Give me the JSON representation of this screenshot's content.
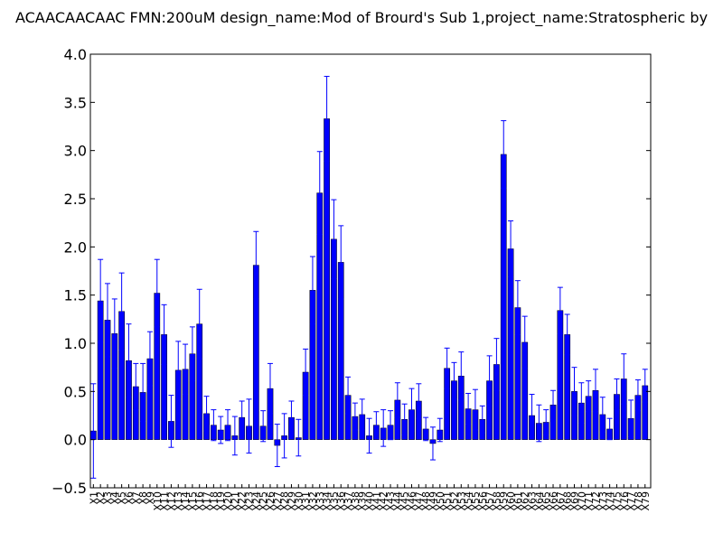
{
  "chart_data": {
    "type": "bar",
    "title": "ACAACAACAAC  FMN:200uM  design_name:Mod of Brourd's Sub 1,project_name:Stratospheric by",
    "xlabel": "",
    "ylabel": "",
    "ylim": [
      -0.5,
      4.0
    ],
    "yticks": [
      "−0.5",
      "0.0",
      "0.5",
      "1.0",
      "1.5",
      "2.0",
      "2.5",
      "3.0",
      "3.5",
      "4.0"
    ],
    "grid": false,
    "bar_color": "#0000ff",
    "categories": [
      "X1",
      "X2",
      "X3",
      "X4",
      "X5",
      "X6",
      "X7",
      "X8",
      "X9",
      "X10",
      "X11",
      "X12",
      "X13",
      "X14",
      "X15",
      "X16",
      "X17",
      "X18",
      "X19",
      "X20",
      "X21",
      "X22",
      "X23",
      "X24",
      "X25",
      "X26",
      "X27",
      "X28",
      "X29",
      "X30",
      "X31",
      "X32",
      "X33",
      "X34",
      "X35",
      "X36",
      "X37",
      "X38",
      "X39",
      "X40",
      "X41",
      "X42",
      "X43",
      "X44",
      "X45",
      "X46",
      "X47",
      "X48",
      "X49",
      "X50",
      "X51",
      "X52",
      "X53",
      "X54",
      "X55",
      "X56",
      "X57",
      "X58",
      "X59",
      "X60",
      "X61",
      "X62",
      "X63",
      "X64",
      "X65",
      "X66",
      "X67",
      "X68",
      "X69",
      "X70",
      "X71",
      "X72",
      "X73",
      "X74",
      "X75",
      "X76",
      "X77",
      "X78",
      "X79"
    ],
    "values": [
      0.09,
      1.44,
      1.24,
      1.1,
      1.33,
      0.82,
      0.55,
      0.49,
      0.84,
      1.52,
      1.09,
      0.19,
      0.72,
      0.73,
      0.89,
      1.2,
      0.27,
      0.15,
      0.1,
      0.15,
      0.04,
      0.23,
      0.14,
      1.81,
      0.14,
      0.53,
      -0.06,
      0.04,
      0.23,
      0.02,
      0.7,
      1.55,
      2.56,
      3.33,
      2.08,
      1.84,
      0.46,
      0.24,
      0.26,
      0.04,
      0.15,
      0.12,
      0.15,
      0.41,
      0.21,
      0.31,
      0.4,
      0.11,
      -0.04,
      0.1,
      0.74,
      0.61,
      0.66,
      0.32,
      0.31,
      0.21,
      0.61,
      0.78,
      2.96,
      1.98,
      1.37,
      1.01,
      0.25,
      0.17,
      0.18,
      0.36,
      1.34,
      1.09,
      0.5,
      0.38,
      0.45,
      0.51,
      0.26,
      0.11,
      0.47,
      0.63,
      0.22,
      0.46,
      0.56
    ],
    "errors": [
      0.49,
      0.43,
      0.38,
      0.36,
      0.4,
      0.38,
      0.24,
      0.3,
      0.28,
      0.35,
      0.31,
      0.27,
      0.3,
      0.26,
      0.28,
      0.36,
      0.18,
      0.16,
      0.14,
      0.16,
      0.2,
      0.17,
      0.28,
      0.35,
      0.16,
      0.26,
      0.22,
      0.23,
      0.17,
      0.19,
      0.24,
      0.35,
      0.43,
      0.44,
      0.41,
      0.38,
      0.19,
      0.14,
      0.16,
      0.18,
      0.14,
      0.19,
      0.15,
      0.18,
      0.16,
      0.22,
      0.18,
      0.12,
      0.17,
      0.12,
      0.21,
      0.19,
      0.25,
      0.16,
      0.21,
      0.14,
      0.26,
      0.27,
      0.35,
      0.29,
      0.28,
      0.27,
      0.22,
      0.19,
      0.13,
      0.15,
      0.24,
      0.21,
      0.25,
      0.21,
      0.16,
      0.22,
      0.18,
      0.11,
      0.16,
      0.26,
      0.19,
      0.16,
      0.17
    ]
  }
}
